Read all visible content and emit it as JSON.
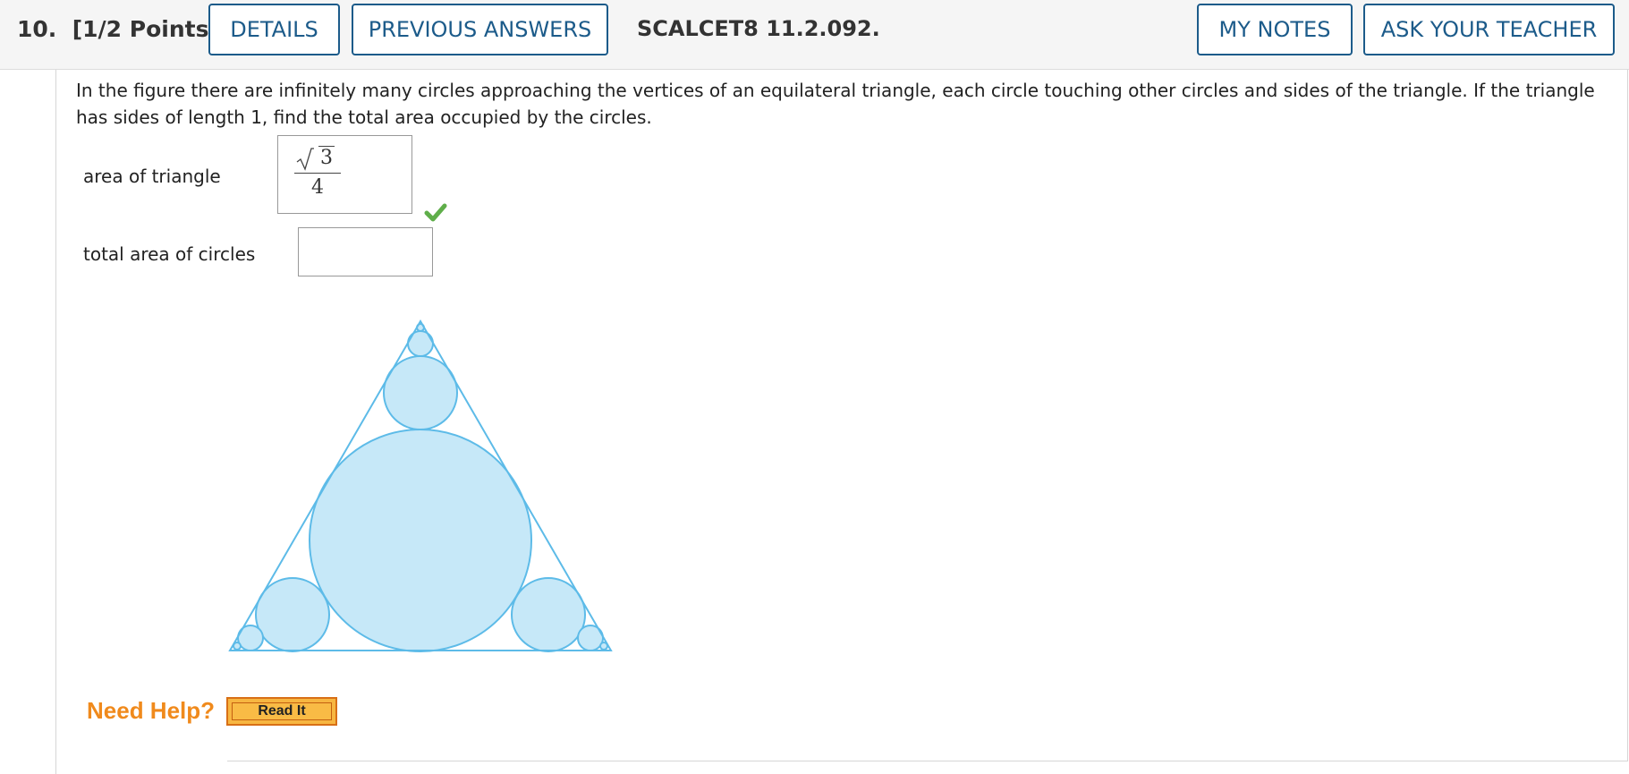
{
  "header": {
    "question_number": "10.",
    "points": "[1/2 Points]",
    "details_label": "DETAILS",
    "previous_answers_label": "PREVIOUS ANSWERS",
    "question_code": "SCALCET8 11.2.092.",
    "my_notes_label": "MY NOTES",
    "ask_teacher_label": "ASK YOUR TEACHER"
  },
  "question": {
    "text": "In the figure there are infinitely many circles approaching the vertices of an equilateral triangle, each circle touching other circles and sides of the triangle. If the triangle has sides of length 1, find the total area occupied by the circles."
  },
  "answers": {
    "triangle_area": {
      "label": "area of triangle",
      "value_numerator": "3",
      "value_denominator": "4",
      "status": "correct"
    },
    "circles_area": {
      "label": "total area of circles",
      "value": ""
    }
  },
  "help": {
    "need_help_label": "Need Help?",
    "read_it_label": "Read It"
  },
  "colors": {
    "accent": "#1c5b8a",
    "circle_fill": "#c6e8f8",
    "circle_stroke": "#5dbbe8",
    "check": "#5fae4a",
    "help_orange": "#f08a1c"
  }
}
